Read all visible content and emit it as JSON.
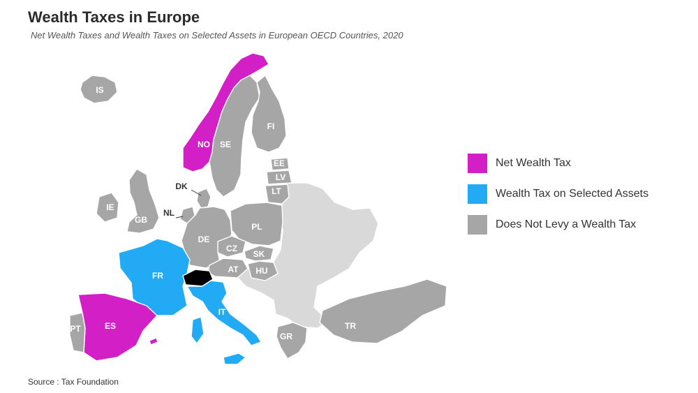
{
  "title": "Wealth Taxes in Europe",
  "subtitle": "Net Wealth Taxes and Wealth Taxes on Selected Assets in European OECD Countries, 2020",
  "source": "Source : Tax Foundation",
  "colors": {
    "net_wealth_tax": "#d31fc6",
    "selected_assets": "#22aaf5",
    "no_wealth_tax": "#a6a6a6",
    "non_oecd": "#d9d9d9"
  },
  "legend": [
    {
      "label": "Net Wealth Tax",
      "category": "net_wealth_tax"
    },
    {
      "label": "Wealth Tax on Selected Assets",
      "category": "selected_assets"
    },
    {
      "label": "Does Not Levy a Wealth Tax",
      "category": "no_wealth_tax"
    }
  ],
  "countries": [
    {
      "code": "IS",
      "category": "no_wealth_tax"
    },
    {
      "code": "NO",
      "category": "net_wealth_tax"
    },
    {
      "code": "SE",
      "category": "no_wealth_tax"
    },
    {
      "code": "FI",
      "category": "no_wealth_tax"
    },
    {
      "code": "EE",
      "category": "no_wealth_tax"
    },
    {
      "code": "LV",
      "category": "no_wealth_tax"
    },
    {
      "code": "LT",
      "category": "no_wealth_tax"
    },
    {
      "code": "DK",
      "category": "no_wealth_tax"
    },
    {
      "code": "IE",
      "category": "no_wealth_tax"
    },
    {
      "code": "GB",
      "category": "no_wealth_tax"
    },
    {
      "code": "NL",
      "category": "no_wealth_tax"
    },
    {
      "code": "DE",
      "category": "no_wealth_tax"
    },
    {
      "code": "PL",
      "category": "no_wealth_tax"
    },
    {
      "code": "CZ",
      "category": "no_wealth_tax"
    },
    {
      "code": "SK",
      "category": "no_wealth_tax"
    },
    {
      "code": "AT",
      "category": "no_wealth_tax"
    },
    {
      "code": "HU",
      "category": "no_wealth_tax"
    },
    {
      "code": "FR",
      "category": "selected_assets"
    },
    {
      "code": "ES",
      "category": "net_wealth_tax"
    },
    {
      "code": "PT",
      "category": "no_wealth_tax"
    },
    {
      "code": "IT",
      "category": "selected_assets"
    },
    {
      "code": "GR",
      "category": "no_wealth_tax"
    },
    {
      "code": "TR",
      "category": "no_wealth_tax"
    }
  ]
}
